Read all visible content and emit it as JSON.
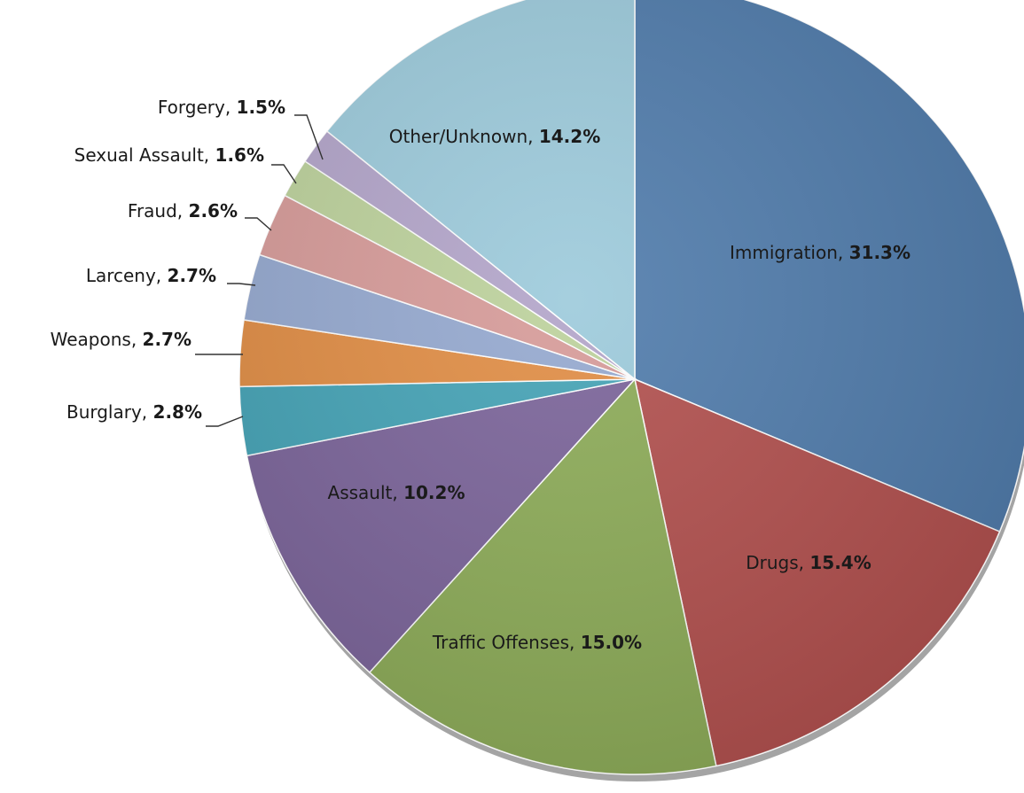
{
  "chart_data": {
    "type": "pie",
    "title": "",
    "start_angle_deg": 0,
    "direction": "clockwise",
    "slices": [
      {
        "label": "Immigration",
        "value": 31.3,
        "value_text": "31.3%",
        "color": "#4f7bab"
      },
      {
        "label": "Drugs",
        "value": 15.4,
        "value_text": "15.4%",
        "color": "#b14f4d"
      },
      {
        "label": "Traffic Offenses",
        "value": 15.0,
        "value_text": "15.0%",
        "color": "#8cab57"
      },
      {
        "label": "Assault",
        "value": 10.2,
        "value_text": "10.2%",
        "color": "#7a6399"
      },
      {
        "label": "Burglary",
        "value": 2.8,
        "value_text": "2.8%",
        "color": "#43a2b5"
      },
      {
        "label": "Weapons",
        "value": 2.7,
        "value_text": "2.7%",
        "color": "#e08c43"
      },
      {
        "label": "Larceny",
        "value": 2.7,
        "value_text": "2.7%",
        "color": "#94a8cf"
      },
      {
        "label": "Fraud",
        "value": 2.6,
        "value_text": "2.6%",
        "color": "#d69a98"
      },
      {
        "label": "Sexual Assault",
        "value": 1.6,
        "value_text": "1.6%",
        "color": "#bcd19b"
      },
      {
        "label": "Forgery",
        "value": 1.5,
        "value_text": "1.5%",
        "color": "#b2a4c9"
      },
      {
        "label": "Other/Unknown",
        "value": 14.2,
        "value_text": "14.2%",
        "color": "#9ccadb"
      }
    ],
    "legend": "none",
    "data_labels": "category-and-value"
  }
}
